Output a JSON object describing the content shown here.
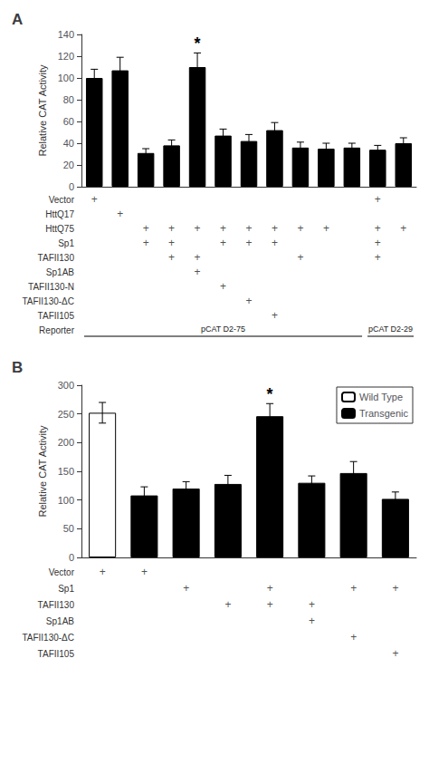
{
  "chart_data": [
    {
      "type": "bar",
      "title": "A",
      "ylabel": "Relative CAT Activity",
      "categories": [
        null,
        null,
        null,
        null,
        null,
        null,
        null,
        null,
        null,
        null,
        null,
        null,
        null
      ],
      "values": [
        100,
        107,
        31,
        38,
        110,
        47,
        42,
        52,
        36,
        35,
        36,
        34,
        40
      ],
      "errors": [
        8,
        12,
        4,
        5,
        13,
        6,
        6,
        7,
        5,
        5,
        4,
        4,
        5
      ],
      "colors": [
        "black",
        "black",
        "black",
        "black",
        "black",
        "black",
        "black",
        "black",
        "black",
        "black",
        "black",
        "black",
        "black"
      ],
      "ylim": [
        0,
        140
      ],
      "yticks": [
        0,
        20,
        40,
        60,
        80,
        100,
        120,
        140
      ],
      "grid": false,
      "tick_labels": "y",
      "annotations": [
        {
          "text": "*",
          "category_index": 4
        }
      ],
      "table_rows": [
        "Vector",
        "HttQ17",
        "HttQ75",
        "Sp1",
        "TAFII130",
        "Sp1AB",
        "TAFII130-N",
        "TAFII130-ΔC",
        "TAFII105",
        "Reporter"
      ],
      "table_data": [
        [
          "+",
          "",
          "",
          "",
          "",
          "",
          "",
          "",
          "",
          "",
          "",
          "+",
          ""
        ],
        [
          "",
          "+",
          "",
          "",
          "",
          "",
          "",
          "",
          "",
          "",
          "",
          "",
          ""
        ],
        [
          "",
          "",
          "+",
          "+",
          "+",
          "+",
          "+",
          "+",
          "+",
          "+",
          "",
          "+",
          "+"
        ],
        [
          "",
          "",
          "+",
          "+",
          "",
          "+",
          "+",
          "+",
          "",
          "",
          "",
          "+",
          ""
        ],
        [
          "",
          "",
          "",
          "+",
          "+",
          "",
          "",
          "",
          "+",
          "",
          "",
          "+",
          ""
        ],
        [
          "",
          "",
          "",
          "",
          "+",
          "",
          "",
          "",
          "",
          "",
          "",
          "",
          ""
        ],
        [
          "",
          "",
          "",
          "",
          "",
          "+",
          "",
          "",
          "",
          "",
          "",
          "",
          ""
        ],
        [
          "",
          "",
          "",
          "",
          "",
          "",
          "+",
          "",
          "",
          "",
          "",
          "",
          ""
        ],
        [
          "",
          "",
          "",
          "",
          "",
          "",
          "",
          "+",
          "",
          "",
          "",
          "",
          ""
        ]
      ],
      "reporter_labels": [
        "pCAT D2-75",
        "pCAT D2-29"
      ],
      "reporter_groups": [
        [
          0,
          10
        ],
        [
          11,
          12
        ]
      ]
    },
    {
      "type": "bar",
      "title": "B",
      "ylabel": "Relative CAT Activity",
      "categories": [
        null,
        null,
        null,
        null,
        null,
        null,
        null,
        null
      ],
      "series": [
        {
          "name": "Wild Type",
          "color": "white",
          "values": [
            252,
            null,
            null,
            null,
            null,
            null,
            null,
            null
          ],
          "errors": [
            18,
            null,
            null,
            null,
            null,
            null,
            null,
            null
          ]
        },
        {
          "name": "Transgenic",
          "color": "black",
          "values": [
            null,
            108,
            120,
            128,
            246,
            130,
            147,
            102
          ],
          "errors": [
            null,
            15,
            12,
            15,
            22,
            12,
            20,
            12
          ]
        }
      ],
      "ylim": [
        0,
        300
      ],
      "yticks": [
        0,
        50,
        100,
        150,
        200,
        250,
        300
      ],
      "grid": false,
      "tick_labels": "y",
      "legend": "upper right",
      "annotations": [
        {
          "text": "*",
          "category_index": 4
        }
      ],
      "table_rows": [
        "Vector",
        "Sp1",
        "TAFII130",
        "Sp1AB",
        "TAFII130-ΔC",
        "TAFII105"
      ],
      "table_data": [
        [
          "+",
          "+",
          "",
          "",
          "",
          "",
          "",
          ""
        ],
        [
          "",
          "",
          "+",
          "",
          "+",
          "",
          "+",
          "+"
        ],
        [
          "",
          "",
          "",
          "+",
          "+",
          "+",
          "",
          ""
        ],
        [
          "",
          "",
          "",
          "",
          "",
          "+",
          "",
          ""
        ],
        [
          "",
          "",
          "",
          "",
          "",
          "",
          "+",
          ""
        ],
        [
          "",
          "",
          "",
          "",
          "",
          "",
          "",
          "+"
        ]
      ]
    }
  ]
}
